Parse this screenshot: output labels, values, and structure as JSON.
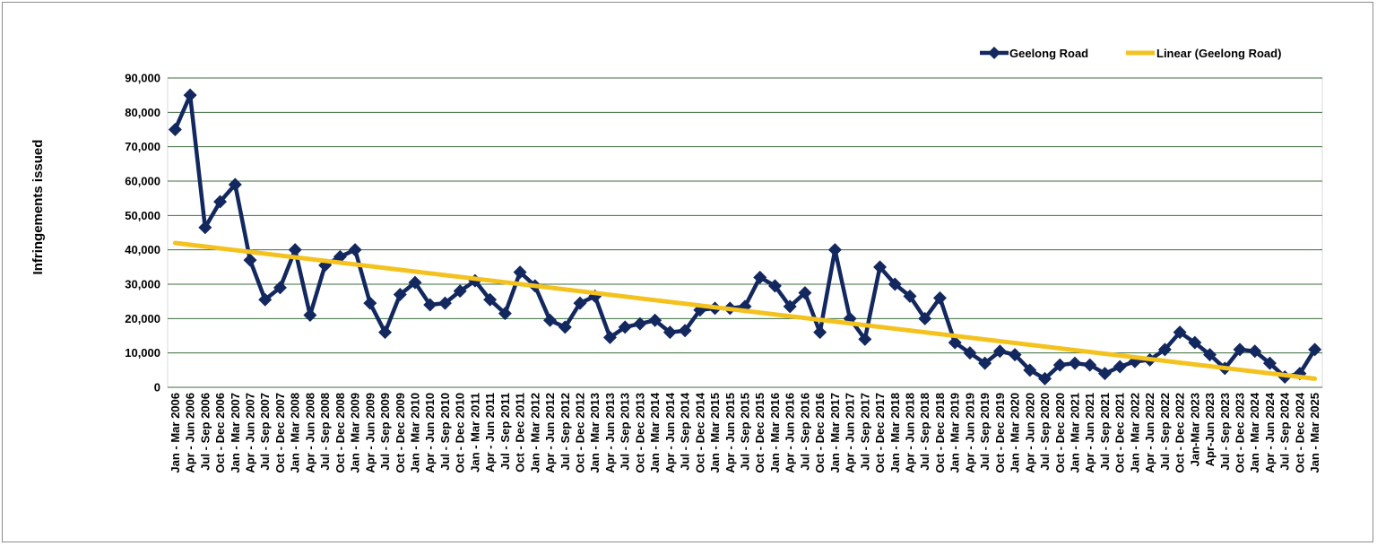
{
  "chart_data": {
    "type": "line",
    "ylabel": "Infringements issued",
    "xlabel": "",
    "ylim": [
      0,
      90000
    ],
    "yticks": [
      "0",
      "10,000",
      "20,000",
      "30,000",
      "40,000",
      "50,000",
      "60,000",
      "70,000",
      "80,000",
      "90,000"
    ],
    "grid": true,
    "legend_position": "top-right",
    "colors": {
      "series": "#13285e",
      "trend": "#f4c21f",
      "grid": "#3d6e3d",
      "plot_border": "#d9d9d9"
    },
    "categories": [
      "Jan - Mar 2006",
      "Apr - Jun 2006",
      "Jul - Sep 2006",
      "Oct - Dec 2006",
      "Jan - Mar 2007",
      "Apr - Jun 2007",
      "Jul - Sep 2007",
      "Oct - Dec 2007",
      "Jan - Mar 2008",
      "Apr - Jun 2008",
      "Jul - Sep 2008",
      "Oct - Dec 2008",
      "Jan - Mar 2009",
      "Apr - Jun 2009",
      "Jul - Sep 2009",
      "Oct - Dec 2009",
      "Jan - Mar 2010",
      "Apr - Jun 2010",
      "Jul - Sep 2010",
      "Oct - Dec 2010",
      "Jan - Mar 2011",
      "Apr - Jun 2011",
      "Jul - Sep 2011",
      "Oct - Dec 2011",
      "Jan - Mar 2012",
      "Apr - Jun 2012",
      "Jul - Sep 2012",
      "Oct - Dec 2012",
      "Jan - Mar 2013",
      "Apr - Jun 2013",
      "Jul - Sep 2013",
      "Oct - Dec 2013",
      "Jan - Mar 2014",
      "Apr - Jun 2014",
      "Jul - Sep 2014",
      "Oct - Dec 2014",
      "Jan - Mar 2015",
      "Apr - Jun 2015",
      "Jul - Sep 2015",
      "Oct - Dec 2015",
      "Jan - Mar 2016",
      "Apr - Jun 2016",
      "Jul - Sep 2016",
      "Oct - Dec 2016",
      "Jan - Mar 2017",
      "Apr - Jun 2017",
      "Jul - Sep 2017",
      "Oct - Dec 2017",
      "Jan - Mar 2018",
      "Apr - Jun 2018",
      "Jul - Sep 2018",
      "Oct - Dec 2018",
      "Jan - Mar 2019",
      "Apr - Jun 2019",
      "Jul - Sep 2019",
      "Oct - Dec 2019",
      "Jan - Mar 2020",
      "Apr - Jun 2020",
      "Jul - Sep 2020",
      "Oct - Dec 2020",
      "Jan - Mar 2021",
      "Apr - Jun 2021",
      "Jul - Sep 2021",
      "Oct - Dec 2021",
      "Jan - Mar 2022",
      "Apr - Jun 2022",
      "Jul - Sep 2022",
      "Oct - Dec 2022",
      "Jan-Mar 2023",
      "Apr-Jun 2023",
      "Jul - Sep 2023",
      "Oct - Dec 2023",
      "Jan - Mar 2024",
      "Apr - Jun 2024",
      "Jul - Sep 2024",
      "Oct - Dec 2024",
      "Jan - Mar 2025"
    ],
    "series": [
      {
        "name": "Geelong Road",
        "values": [
          75000,
          85000,
          46500,
          54000,
          59000,
          37000,
          25500,
          29000,
          40000,
          21000,
          35500,
          38000,
          40000,
          24500,
          16000,
          27000,
          30500,
          24000,
          24500,
          28000,
          31000,
          25500,
          21500,
          33500,
          29500,
          19500,
          17500,
          24500,
          26500,
          14500,
          17500,
          18500,
          19500,
          16000,
          16500,
          22500,
          23000,
          23000,
          23500,
          32000,
          29500,
          23500,
          27500,
          16000,
          40000,
          20000,
          14000,
          35000,
          30000,
          26500,
          20000,
          26000,
          13000,
          10000,
          7000,
          10500,
          9500,
          5000,
          2500,
          6500,
          7000,
          6500,
          4000,
          6000,
          7500,
          8000,
          11000,
          16000,
          13000,
          9500,
          5500,
          11000,
          10500,
          7000,
          3000,
          4000,
          11000
        ]
      }
    ],
    "trendline": {
      "name": "Linear (Geelong Road)",
      "start": 42000,
      "end": 2500
    }
  }
}
